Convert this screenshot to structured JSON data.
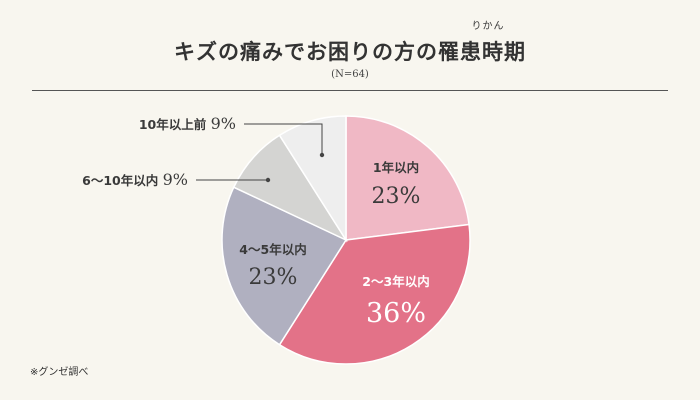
{
  "header": {
    "title": "キズの痛みでお困りの方の罹患時期",
    "ruby": "りかん",
    "sample_size": "(N=64)"
  },
  "footnote": "※グンゼ調べ",
  "chart_data": {
    "type": "pie",
    "title": "キズの痛みでお困りの方の罹患時期",
    "start_angle_deg": 0,
    "direction": "clockwise",
    "slices": [
      {
        "label": "1年以内",
        "value": 23,
        "value_text": "23%",
        "color": "#f0b8c5",
        "label_color": "#3a3a3a",
        "label_placement": "inside"
      },
      {
        "label": "2〜3年以内",
        "value": 36,
        "value_text": "36%",
        "color": "#e37288",
        "label_color": "#ffffff",
        "label_placement": "inside"
      },
      {
        "label": "4〜5年以内",
        "value": 23,
        "value_text": "23%",
        "color": "#b0b0c0",
        "label_color": "#3a3a3a",
        "label_placement": "inside"
      },
      {
        "label": "6〜10年以内",
        "value": 9,
        "value_text": "9%",
        "color": "#d4d4d2",
        "label_color": "#3a3a3a",
        "label_placement": "outside"
      },
      {
        "label": "10年以上前",
        "value": 9,
        "value_text": "9%",
        "color": "#eeeeee",
        "label_color": "#3a3a3a",
        "label_placement": "outside"
      }
    ]
  }
}
